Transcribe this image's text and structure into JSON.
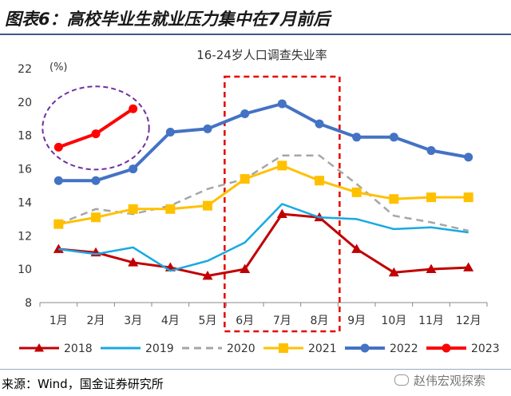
{
  "header": {
    "title": "图表6：高校毕业生就业压力集中在7月前后"
  },
  "footer": {
    "source": "来源：Wind，国金证券研究所",
    "watermark": "赵伟宏观探索"
  },
  "chart_data": {
    "type": "line",
    "title": "16-24岁人口调查失业率",
    "ylabel": "(%)",
    "ylim": [
      8,
      22
    ],
    "yticks": [
      8,
      10,
      12,
      14,
      16,
      18,
      20,
      22
    ],
    "categories": [
      "1月",
      "2月",
      "3月",
      "4月",
      "5月",
      "6月",
      "7月",
      "8月",
      "9月",
      "10月",
      "11月",
      "12月"
    ],
    "legend_position": "bottom",
    "grid": false,
    "series": [
      {
        "name": "2018",
        "color": "#c00000",
        "marker": "triangle",
        "dashed": false,
        "values": [
          11.2,
          11.0,
          10.4,
          10.1,
          9.6,
          10.0,
          13.3,
          13.1,
          11.2,
          9.8,
          10.0,
          10.1
        ]
      },
      {
        "name": "2019",
        "color": "#17a9e3",
        "marker": "none",
        "dashed": false,
        "values": [
          11.2,
          10.9,
          11.3,
          9.9,
          10.5,
          11.6,
          13.9,
          13.1,
          13.0,
          12.4,
          12.5,
          12.2
        ]
      },
      {
        "name": "2020",
        "color": "#a6a6a6",
        "marker": "none",
        "dashed": true,
        "values": [
          12.7,
          13.6,
          13.3,
          13.8,
          14.8,
          15.4,
          16.8,
          16.8,
          15.1,
          13.2,
          12.8,
          12.3
        ]
      },
      {
        "name": "2021",
        "color": "#ffc000",
        "marker": "square",
        "dashed": false,
        "values": [
          12.7,
          13.1,
          13.6,
          13.6,
          13.8,
          15.4,
          16.2,
          15.3,
          14.6,
          14.2,
          14.3,
          14.3
        ]
      },
      {
        "name": "2022",
        "color": "#4472c4",
        "marker": "circle",
        "dashed": false,
        "values": [
          15.3,
          15.3,
          16.0,
          18.2,
          18.4,
          19.3,
          19.9,
          18.7,
          17.9,
          17.9,
          17.1,
          16.7
        ]
      },
      {
        "name": "2023",
        "color": "#ff0000",
        "marker": "circle",
        "dashed": false,
        "values": [
          17.3,
          18.1,
          19.6,
          null,
          null,
          null,
          null,
          null,
          null,
          null,
          null,
          null
        ]
      }
    ],
    "annotations": [
      {
        "kind": "dashed-box",
        "color": "#e60000",
        "from_category": "6月",
        "to_category": "8月"
      },
      {
        "kind": "dashed-ellipse",
        "color": "#7030a0",
        "series": "2023"
      }
    ]
  }
}
